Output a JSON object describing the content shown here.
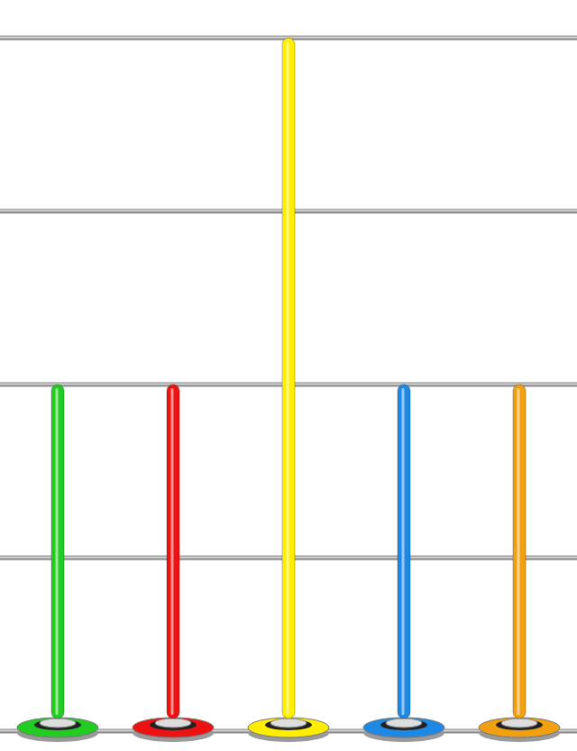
{
  "chart_data": {
    "type": "bar",
    "categories": [
      null,
      null,
      null,
      null,
      null
    ],
    "values": [
      2,
      2,
      4,
      2,
      2
    ],
    "colors": [
      "#22cc22",
      "#ee1111",
      "#ffee00",
      "#1e88e5",
      "#f0a010"
    ],
    "ylim": [
      0,
      4
    ],
    "yticks": [
      0,
      1,
      2,
      3,
      4
    ],
    "grid": true,
    "tick_labels": false
  }
}
